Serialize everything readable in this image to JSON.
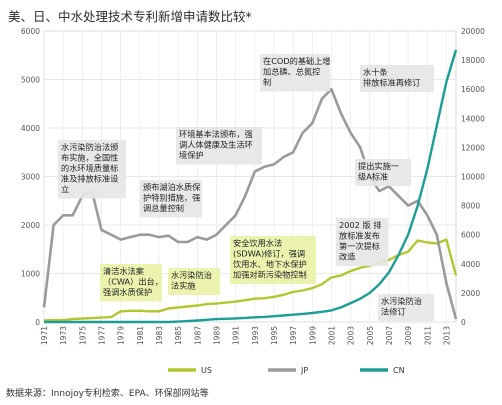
{
  "chart_data": {
    "type": "line",
    "title": "美、日、中水处理技术专利新增申请数比较*",
    "source_note": "数据来源：Innojoy专利检索、EPA、环保部网站等",
    "x_tick_labels": [
      "1971",
      "1973",
      "1975",
      "1977",
      "1979",
      "1981",
      "1983",
      "1985",
      "1987",
      "1989",
      "1991",
      "1993",
      "1995",
      "1997",
      "1999",
      "2001",
      "2003",
      "2005",
      "2007",
      "2009",
      "2011",
      "2013"
    ],
    "x_range": [
      1971,
      2014
    ],
    "y_left": {
      "ticks": [
        0,
        1000,
        2000,
        3000,
        4000,
        5000,
        6000
      ],
      "range": [
        0,
        6000
      ]
    },
    "y_right": {
      "ticks": [
        0,
        2000,
        4000,
        6000,
        8000,
        10000,
        12000,
        14000,
        16000,
        18000,
        20000
      ],
      "range": [
        0,
        20000
      ]
    },
    "grid": true,
    "legend_position": "bottom",
    "colors": {
      "US": "#b4c62e",
      "JP": "#9a9a9a",
      "CN": "#1b9e96",
      "annotation_bg": "#e6e6e6",
      "annotation_highlight": "#e9f2a8"
    },
    "series": [
      {
        "name": "US",
        "axis": "left",
        "x": [
          1971,
          1972,
          1973,
          1974,
          1975,
          1976,
          1977,
          1978,
          1979,
          1980,
          1981,
          1982,
          1983,
          1984,
          1985,
          1986,
          1987,
          1988,
          1989,
          1990,
          1991,
          1992,
          1993,
          1994,
          1995,
          1996,
          1997,
          1998,
          1999,
          2000,
          2001,
          2002,
          2003,
          2004,
          2005,
          2006,
          2007,
          2008,
          2009,
          2010,
          2011,
          2012,
          2013,
          2014
        ],
        "y": [
          30,
          40,
          40,
          60,
          70,
          80,
          90,
          100,
          220,
          230,
          230,
          220,
          220,
          280,
          300,
          320,
          340,
          370,
          380,
          400,
          420,
          450,
          480,
          490,
          520,
          560,
          620,
          650,
          700,
          780,
          920,
          960,
          1050,
          1120,
          1160,
          1230,
          1280,
          1380,
          1450,
          1680,
          1640,
          1620,
          1700,
          960
        ]
      },
      {
        "name": "JP",
        "axis": "left",
        "x": [
          1971,
          1972,
          1973,
          1974,
          1975,
          1976,
          1977,
          1978,
          1979,
          1980,
          1981,
          1982,
          1983,
          1984,
          1985,
          1986,
          1987,
          1988,
          1989,
          1990,
          1991,
          1992,
          1993,
          1994,
          1995,
          1996,
          1997,
          1998,
          1999,
          2000,
          2001,
          2002,
          2003,
          2004,
          2005,
          2006,
          2007,
          2008,
          2009,
          2010,
          2011,
          2012,
          2013,
          2014
        ],
        "y": [
          300,
          2000,
          2200,
          2200,
          2600,
          2700,
          1900,
          1800,
          1700,
          1750,
          1800,
          1800,
          1750,
          1780,
          1650,
          1650,
          1750,
          1700,
          1800,
          2000,
          2200,
          2600,
          3100,
          3200,
          3250,
          3400,
          3500,
          3900,
          4100,
          4600,
          4800,
          4300,
          3900,
          3600,
          3000,
          2700,
          2800,
          2600,
          2400,
          2500,
          2200,
          1800,
          800,
          60
        ]
      },
      {
        "name": "CN",
        "axis": "right",
        "x": [
          1971,
          1975,
          1980,
          1984,
          1985,
          1986,
          1987,
          1988,
          1989,
          1990,
          1991,
          1992,
          1993,
          1994,
          1995,
          1996,
          1997,
          1998,
          1999,
          2000,
          2001,
          2002,
          2003,
          2004,
          2005,
          2006,
          2007,
          2008,
          2009,
          2010,
          2011,
          2012,
          2013,
          2014
        ],
        "y": [
          0,
          0,
          0,
          0,
          30,
          60,
          100,
          150,
          200,
          220,
          250,
          280,
          320,
          350,
          400,
          450,
          500,
          560,
          620,
          700,
          800,
          1000,
          1300,
          1600,
          2000,
          2600,
          3400,
          4600,
          6000,
          8000,
          10500,
          13500,
          16500,
          18700
        ]
      }
    ],
    "annotations": [
      {
        "text": [
          "水污染防治法颁",
          "布实施，全国性",
          "的水环境质量标",
          "准及排放标准设",
          "立"
        ]
      },
      {
        "text": [
          "颁布湖泊水质保",
          "护特别措施，强",
          "调总量控制"
        ]
      },
      {
        "text": [
          "环境基本法颁布，强",
          "调人体健康及生活环",
          "境保护"
        ]
      },
      {
        "text": [
          "在COD的基础上增",
          "加总磷、总氮控",
          "制"
        ]
      },
      {
        "text": [
          "水十条",
          "排放标准再修订"
        ]
      },
      {
        "text": [
          "提出实施一",
          "级A标准"
        ]
      },
      {
        "text": [
          "2002 版 排",
          "放标准发布",
          "第一次提标",
          "改造"
        ]
      },
      {
        "text": [
          "安全饮用水法",
          "(SDWA)修订，强调",
          "饮用水、地下水保护",
          "加强对新污染物控制"
        ]
      },
      {
        "text": [
          "清洁水法案",
          "（CWA）出台，",
          "强调水质保护"
        ]
      },
      {
        "text": [
          "水污染防治",
          "法实施"
        ]
      },
      {
        "text": [
          "水污染防治",
          "法修订"
        ]
      }
    ]
  }
}
